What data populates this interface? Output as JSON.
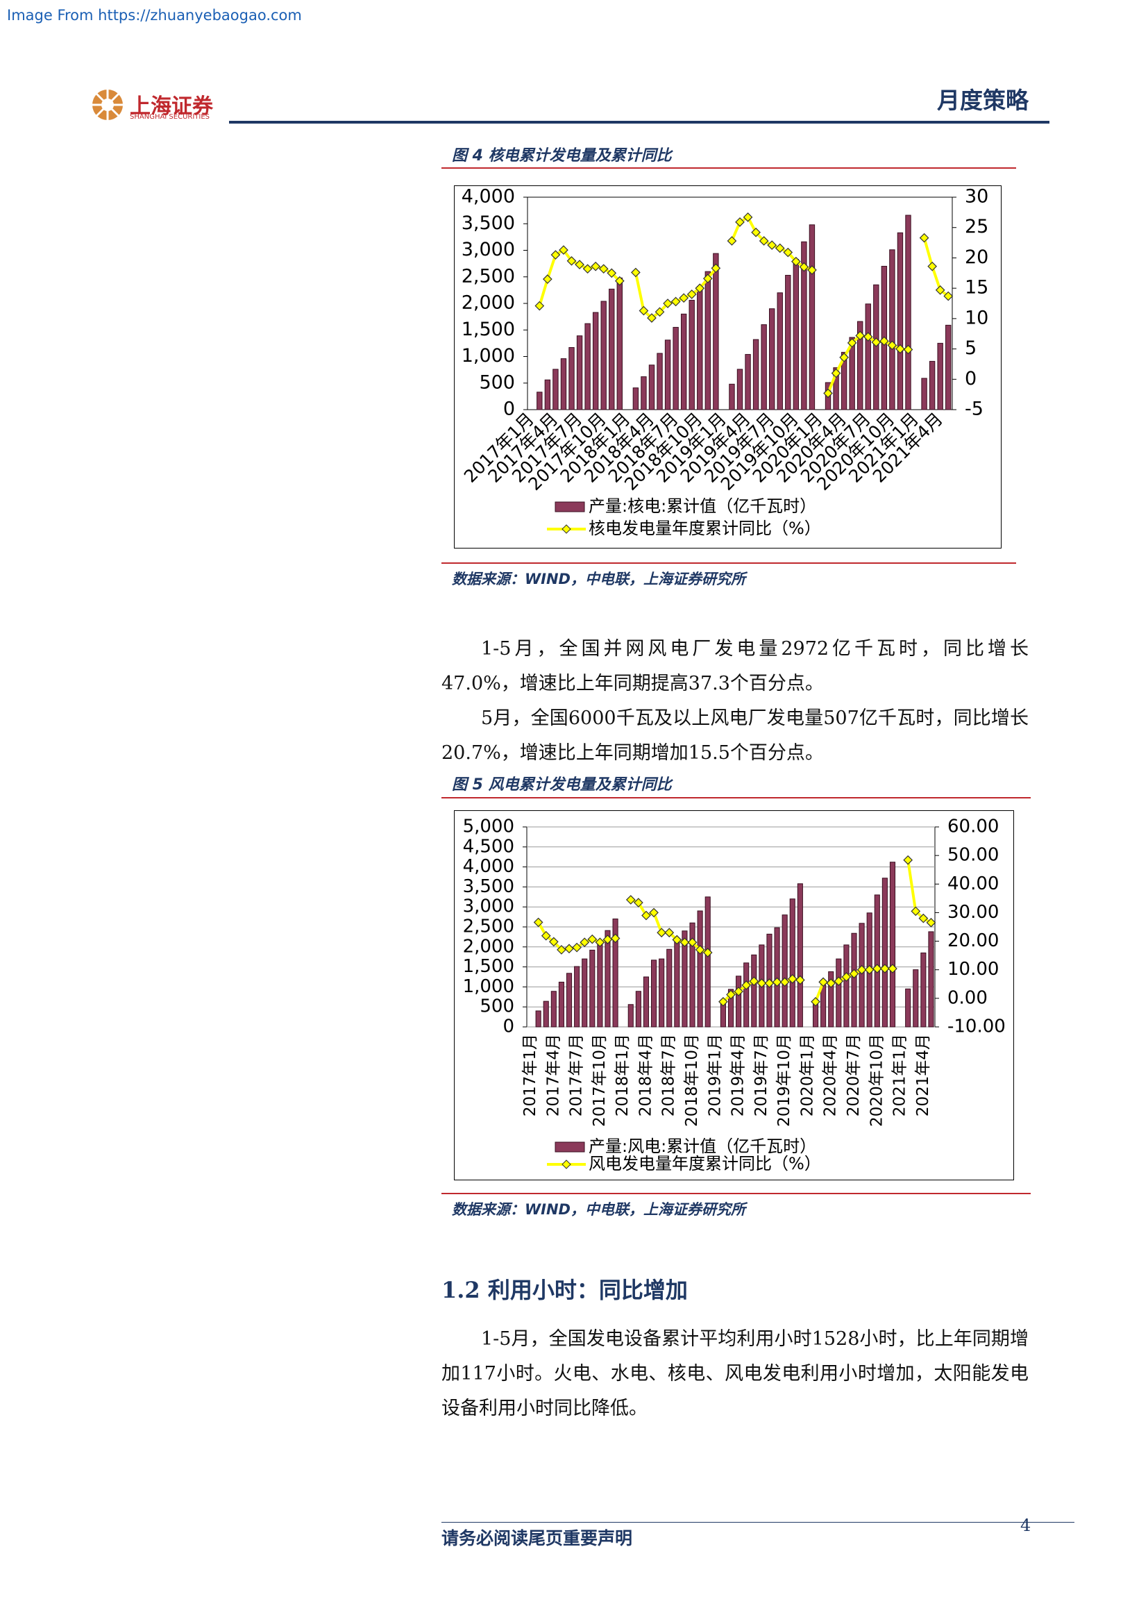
{
  "header": {
    "watermark": "Image From https://zhuanyebaogao.com",
    "logo_cn": "上海证券",
    "logo_en": "SHANGHAI SECURITIES",
    "report_type": "月度策略"
  },
  "chart_data": [
    {
      "type": "combo",
      "title": "图 4 核电累计发电量及累计同比",
      "source": "数据来源：WIND，中电联，上海证券研究所",
      "categories": [
        "2017年1月",
        null,
        null,
        "2017年4月",
        null,
        null,
        "2017年7月",
        null,
        null,
        "2017年10月",
        null,
        null,
        "2018年1月",
        null,
        null,
        "2018年4月",
        null,
        null,
        "2018年7月",
        null,
        null,
        "2018年10月",
        null,
        null,
        "2019年1月",
        null,
        null,
        "2019年4月",
        null,
        null,
        "2019年7月",
        null,
        null,
        "2019年10月",
        null,
        null,
        "2020年1月",
        null,
        null,
        "2020年4月",
        null,
        null,
        "2020年7月",
        null,
        null,
        "2020年10月",
        null,
        null,
        "2021年1月",
        null,
        null,
        "2021年4月",
        null
      ],
      "series": [
        {
          "name": "产量:核电:累计值（亿千瓦时）",
          "type": "bar",
          "color": "#8b3a5a",
          "values": [
            null,
            330,
            560,
            760,
            960,
            1170,
            1390,
            1620,
            1830,
            2040,
            2270,
            2480,
            null,
            410,
            620,
            840,
            1060,
            1310,
            1550,
            1800,
            2060,
            2320,
            2600,
            2940,
            null,
            480,
            760,
            1040,
            1320,
            1600,
            1900,
            2200,
            2530,
            2830,
            3160,
            3480,
            null,
            510,
            790,
            1080,
            1360,
            1660,
            1990,
            2350,
            2700,
            3010,
            3330,
            3660,
            null,
            590,
            910,
            1250,
            1590
          ]
        },
        {
          "name": "核电发电量年度累计同比（%）",
          "type": "line",
          "axis": "y2",
          "color": "#ffff00",
          "values": [
            null,
            12.1,
            16.5,
            20.5,
            21.3,
            19.5,
            18.9,
            18.2,
            18.6,
            18.2,
            17.5,
            16.2,
            null,
            17.6,
            11.3,
            10.1,
            11.1,
            12.5,
            12.8,
            13.4,
            14.0,
            15.0,
            16.6,
            18.3,
            null,
            22.8,
            25.9,
            26.7,
            24.2,
            22.8,
            22.1,
            21.6,
            20.9,
            19.4,
            18.5,
            18.0,
            null,
            -2.3,
            1.0,
            3.6,
            6.0,
            7.2,
            7.0,
            6.1,
            6.3,
            5.6,
            5.0,
            4.9,
            null,
            23.3,
            18.6,
            14.7,
            13.7
          ]
        }
      ],
      "ylim": [
        0,
        4000
      ],
      "yticks": [
        0,
        500,
        {
          "value": 1000,
          "label": "1,000"
        },
        {
          "value": 1500,
          "label": "1,500"
        },
        {
          "value": 2000,
          "label": "2,000"
        },
        {
          "value": 2500,
          "label": "2,500"
        },
        {
          "value": 3000,
          "label": "3,000"
        },
        {
          "value": 3500,
          "label": "3,500"
        },
        {
          "value": 4000,
          "label": "4,000"
        }
      ],
      "y2lim": [
        -5,
        30
      ],
      "y2ticks": [
        -5,
        0,
        5,
        10,
        15,
        20,
        25,
        30
      ],
      "grid": false,
      "legend": "bottom"
    },
    {
      "type": "combo",
      "title": "图 5 风电累计发电量及累计同比",
      "source": "数据来源：WIND，中电联，上海证券研究所",
      "categories": [
        "2017年1月",
        null,
        null,
        "2017年4月",
        null,
        null,
        "2017年7月",
        null,
        null,
        "2017年10月",
        null,
        null,
        "2018年1月",
        null,
        null,
        "2018年4月",
        null,
        null,
        "2018年7月",
        null,
        null,
        "2018年10月",
        null,
        null,
        "2019年1月",
        null,
        null,
        "2019年4月",
        null,
        null,
        "2019年7月",
        null,
        null,
        "2019年10月",
        null,
        null,
        "2020年1月",
        null,
        null,
        "2020年4月",
        null,
        null,
        "2020年7月",
        null,
        null,
        "2020年10月",
        null,
        null,
        "2021年1月",
        null,
        null,
        "2021年4月",
        null
      ],
      "series": [
        {
          "name": "产量:风电:累计值（亿千瓦时）",
          "type": "bar",
          "color": "#8b3a5a",
          "values": [
            null,
            400,
            640,
            890,
            1120,
            1340,
            1510,
            1700,
            1920,
            2100,
            2410,
            2700,
            null,
            560,
            890,
            1250,
            1670,
            1700,
            1940,
            2170,
            2400,
            2600,
            2900,
            3250,
            null,
            620,
            940,
            1270,
            1600,
            1800,
            2050,
            2320,
            2480,
            2800,
            3200,
            3580,
            null,
            560,
            1050,
            1380,
            1700,
            2050,
            2340,
            2590,
            2850,
            3300,
            3720,
            4120,
            null,
            950,
            1430,
            1850,
            2380
          ]
        },
        {
          "name": "风电发电量年度累计同比（%）",
          "type": "line",
          "axis": "y2",
          "color": "#ffff00",
          "values": [
            null,
            26.6,
            21.9,
            19.8,
            17.0,
            17.4,
            17.8,
            19.6,
            20.7,
            19.6,
            20.6,
            21.0,
            null,
            34.5,
            33.5,
            29.0,
            30.0,
            23.0,
            23.0,
            20.5,
            19.6,
            19.6,
            17.0,
            16.0,
            null,
            -1.2,
            1.3,
            2.4,
            4.6,
            6.0,
            5.3,
            5.3,
            5.7,
            5.7,
            6.8,
            6.4,
            null,
            -1.2,
            5.7,
            5.3,
            6.0,
            7.5,
            8.6,
            10.0,
            10.0,
            10.4,
            10.4,
            10.4,
            null,
            48.4,
            30.5,
            28.0,
            26.5
          ]
        }
      ],
      "ylim": [
        0,
        5000
      ],
      "yticks": [
        0,
        500,
        {
          "value": 1000,
          "label": "1,000"
        },
        {
          "value": 1500,
          "label": "1,500"
        },
        {
          "value": 2000,
          "label": "2,000"
        },
        {
          "value": 2500,
          "label": "2,500"
        },
        {
          "value": 3000,
          "label": "3,000"
        },
        {
          "value": 3500,
          "label": "3,500"
        },
        {
          "value": 4000,
          "label": "4,000"
        },
        {
          "value": 4500,
          "label": "4,500"
        },
        {
          "value": 5000,
          "label": "5,000"
        }
      ],
      "y2lim": [
        -10,
        60
      ],
      "y2ticks": [
        {
          "value": -10,
          "label": "-10.00"
        },
        {
          "value": 0,
          "label": "0.00"
        },
        {
          "value": 10,
          "label": "10.00"
        },
        {
          "value": 20,
          "label": "20.00"
        },
        {
          "value": 30,
          "label": "30.00"
        },
        {
          "value": 40,
          "label": "40.00"
        },
        {
          "value": 50,
          "label": "50.00"
        },
        {
          "value": 60,
          "label": "60.00"
        }
      ],
      "grid": true,
      "legend": "bottom"
    }
  ],
  "paragraphs": [
    "1-5月，全国并网风电厂发电量2972亿千瓦时，同比增长47.0%，增速比上年同期提高37.3个百分点。",
    "5月，全国6000千瓦及以上风电厂发电量507亿千瓦时，同比增长20.7%，增速比上年同期增加15.5个百分点。"
  ],
  "section": {
    "heading": "1.2 利用小时：同比增加",
    "paragraphs": [
      "1-5月，全国发电设备累计平均利用小时1528小时，比上年同期增加117小时。火电、水电、核电、风电发电利用小时增加，太阳能发电设备利用小时同比降低。"
    ]
  },
  "footer": {
    "disclaimer": "请务必阅读尾页重要声明",
    "page": "4"
  }
}
